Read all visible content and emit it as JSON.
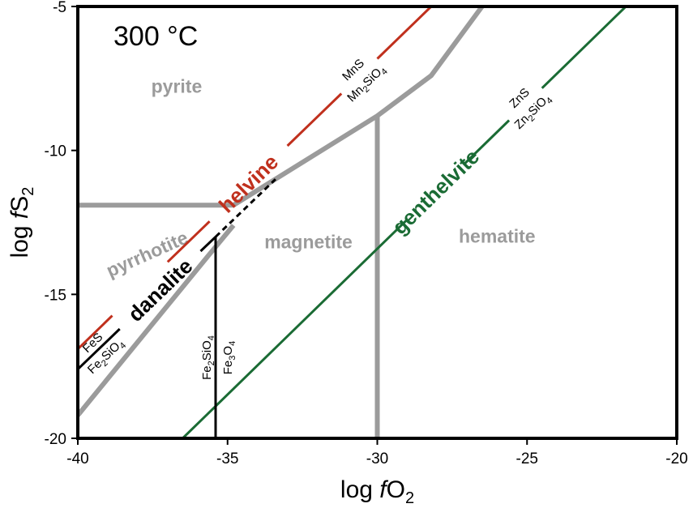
{
  "chart_data": {
    "type": "line",
    "title": "300 °C",
    "xlabel": "log fO2",
    "ylabel": "log fS2",
    "xlim": [
      -40,
      -20
    ],
    "ylim": [
      -20,
      -5
    ],
    "xticks": [
      -40,
      -35,
      -30,
      -25,
      -20
    ],
    "yticks": [
      -20,
      -15,
      -10,
      -5
    ],
    "colors": {
      "fe_boundary": "#9b9b9b",
      "helvine": "#c0301d",
      "genthelvite": "#1a6b34",
      "danalite": "#000000"
    },
    "fields": [
      {
        "name": "pyrite",
        "label_at": [
          -36.7,
          -8.0
        ]
      },
      {
        "name": "pyrrhotite",
        "label_at": [
          -37.6,
          -13.8
        ]
      },
      {
        "name": "magnetite",
        "label_at": [
          -32.3,
          -13.4
        ]
      },
      {
        "name": "hematite",
        "label_at": [
          -26.0,
          -13.2
        ]
      }
    ],
    "series": [
      {
        "name": "pyrite/pyrrhotite",
        "points": [
          [
            -40,
            -11.9
          ],
          [
            -34.8,
            -11.9
          ]
        ]
      },
      {
        "name": "pyrrhotite/magnetite",
        "points": [
          [
            -40,
            -19.2
          ],
          [
            -35.6,
            -13.6
          ],
          [
            -34.8,
            -12.6
          ]
        ]
      },
      {
        "name": "pyrite/magnetite",
        "points": [
          [
            -34.8,
            -11.9
          ],
          [
            -30.0,
            -8.8
          ],
          [
            -28.2,
            -7.4
          ],
          [
            -26.5,
            -5.0
          ]
        ]
      },
      {
        "name": "magnetite/hematite",
        "points": [
          [
            -30.0,
            -8.8
          ],
          [
            -30.0,
            -20.0
          ]
        ]
      },
      {
        "name": "helvine",
        "points": [
          [
            -40,
            -16.9
          ],
          [
            -28.2,
            -5.0
          ]
        ],
        "label": "helvine",
        "reaction_top": "MnS",
        "reaction_bottom": "Mn₂SiO₄"
      },
      {
        "name": "genthelvite",
        "points": [
          [
            -36.5,
            -20.0
          ],
          [
            -21.7,
            -5.0
          ]
        ],
        "label": "genthelvite",
        "reaction_top": "ZnS",
        "reaction_bottom": "Zn₂SiO₄"
      },
      {
        "name": "danalite",
        "points": [
          [
            -40,
            -17.6
          ],
          [
            -35.4,
            -13.0
          ],
          [
            -33.4,
            -11.0
          ]
        ],
        "label": "danalite",
        "reaction_top": "FeS",
        "reaction_bottom": "Fe₂SiO₄"
      },
      {
        "name": "Fe2SiO4/Fe3O4",
        "points": [
          [
            -35.4,
            -13.0
          ],
          [
            -35.4,
            -20.0
          ]
        ],
        "reaction_left": "Fe₂SiO₄",
        "reaction_right": "Fe₃O₄"
      }
    ]
  }
}
